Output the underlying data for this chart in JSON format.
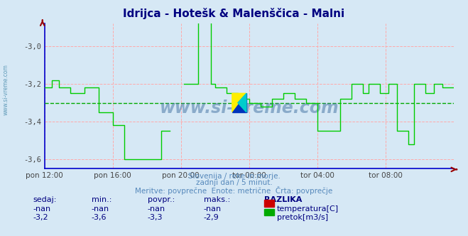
{
  "title": "Idrijca - Hotešk & Malenščica - Malni",
  "title_color": "#000080",
  "bg_color": "#d6e8f5",
  "plot_bg_color": "#d6e8f5",
  "grid_color": "#ffaaaa",
  "avg_line_color": "#00aa00",
  "line_color": "#00cc00",
  "ylim": [
    -3.65,
    -2.88
  ],
  "yticks": [
    -3.6,
    -3.4,
    -3.2,
    -3.0
  ],
  "xtick_labels": [
    "pon 12:00",
    "pon 16:00",
    "pon 20:00",
    "tor 00:00",
    "tor 04:00",
    "tor 08:00"
  ],
  "xtick_fractions": [
    0.0,
    0.1667,
    0.3333,
    0.5,
    0.6667,
    0.8333
  ],
  "avg_value": -3.3,
  "subtitle1": "Slovenija / reke in morje.",
  "subtitle2": "zadnji dan / 5 minut.",
  "subtitle3": "Meritve: povprečne  Enote: metrične  Črta: povprečje",
  "subtitle_color": "#5588bb",
  "table_headers": [
    "sedaj:",
    "min.:",
    "povpr.:",
    "maks.:",
    "RAZLIKA"
  ],
  "table_row1": [
    "-nan",
    "-nan",
    "-nan",
    "-nan"
  ],
  "table_row2": [
    "-3,2",
    "-3,6",
    "-3,3",
    "-2,9"
  ],
  "table_color": "#000080",
  "legend_temp_color": "#cc0000",
  "legend_flow_color": "#00aa00",
  "watermark": "www.si-vreme.com",
  "watermark_color": "#4070a0",
  "left_label": "www.si-vreme.com"
}
